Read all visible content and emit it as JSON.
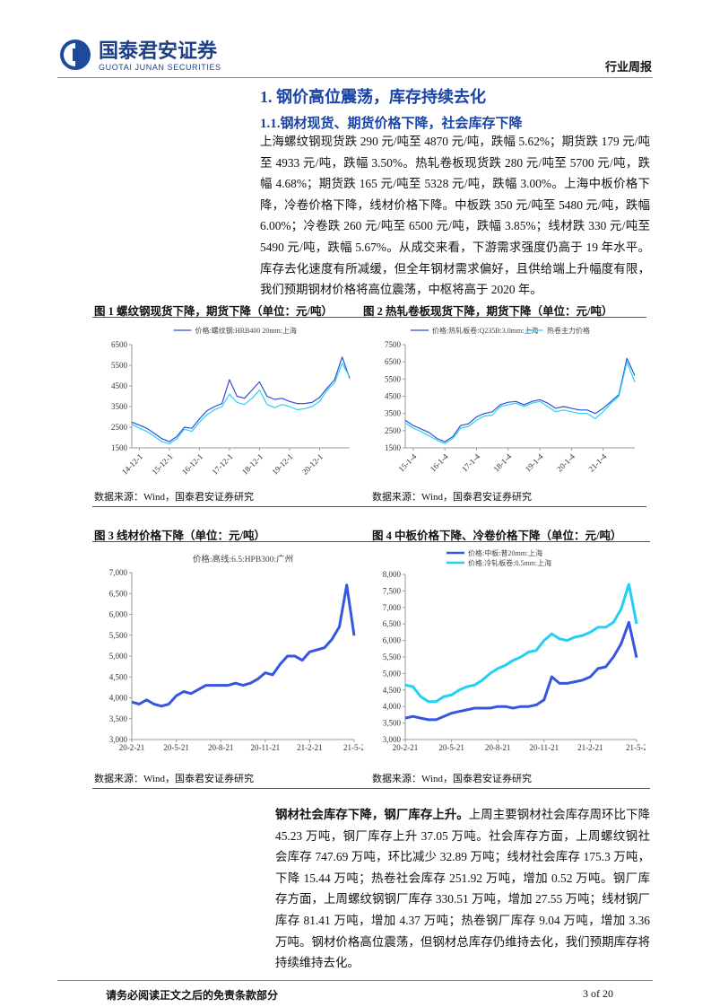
{
  "header": {
    "company": "国泰君安证券",
    "company_en": "GUOTAI JUNAN SECURITIES",
    "report_type": "行业周报"
  },
  "section": {
    "title": "1. 钢价高位震荡，库存持续去化",
    "subtitle": "1.1.钢材现货、期货价格下降，社会库存下降",
    "paragraph": "上海螺纹钢现货跌 290 元/吨至 4870 元/吨，跌幅 5.62%；期货跌 179 元/吨至 4933 元/吨，跌幅 3.50%。热轧卷板现货跌 280 元/吨至 5700 元/吨，跌幅 4.68%；期货跌 165 元/吨至 5328 元/吨，跌幅 3.00%。上海中板价格下降，冷卷价格下降，线材价格下降。中板跌 350 元/吨至 5480 元/吨，跌幅 6.00%；冷卷跌 260 元/吨至 6500 元/吨，跌幅 3.85%；线材跌 330 元/吨至 5490 元/吨，跌幅 5.67%。从成交来看，下游需求强度仍高于 19 年水平。库存去化速度有所减缓，但全年钢材需求偏好，且供给端上升幅度有限，我们预期钢材价格将高位震荡，中枢将高于 2020 年。"
  },
  "figures": [
    {
      "caption": "图 1 螺纹钢现货下降，期货下降（单位：元/吨）",
      "source": "数据来源：Wind，国泰君安证券研究",
      "chart_data": {
        "type": "line",
        "legend": "top",
        "categories": [
          null,
          "14-12-1",
          null,
          null,
          null,
          "15-12-1",
          null,
          null,
          null,
          "16-12-1",
          null,
          null,
          null,
          "17-12-1",
          null,
          null,
          null,
          "18-12-1",
          null,
          null,
          null,
          "19-12-1",
          null,
          null,
          null,
          "20-12-1",
          null,
          null,
          null,
          null
        ],
        "series": [
          {
            "name": "价格:螺纹钢:HRB400 20mm:上海",
            "color": "#2f4fd6",
            "values": [
              2750,
              2600,
              2450,
              2200,
              1950,
              1800,
              2050,
              2500,
              2450,
              2900,
              3300,
              3500,
              3650,
              4800,
              4000,
              3900,
              4300,
              4700,
              4000,
              3850,
              3900,
              3750,
              3650,
              3650,
              3700,
              3950,
              4400,
              4800,
              5900,
              4870
            ]
          },
          {
            "color": "#27d3f0",
            "values": [
              2650,
              2450,
              2300,
              2050,
              1800,
              1700,
              1950,
              2400,
              2300,
              2750,
              3100,
              3350,
              3500,
              4100,
              3700,
              3600,
              3900,
              4300,
              3600,
              3450,
              3600,
              3500,
              3350,
              3400,
              3500,
              3750,
              4300,
              4650,
              5600,
              4933
            ]
          }
        ],
        "ylim": [
          1500,
          6500
        ],
        "yticks": [
          1500,
          2500,
          3500,
          4500,
          5500,
          6500
        ]
      }
    },
    {
      "caption": "图 2 热轧卷板现货下降，期货下降（单位：元/吨）",
      "source": "数据来源：Wind，国泰君安证券研究",
      "chart_data": {
        "type": "line",
        "legend": "top",
        "categories": [
          null,
          "15-1-4",
          null,
          null,
          null,
          "16-1-4",
          null,
          null,
          null,
          "17-1-4",
          null,
          null,
          null,
          "18-1-4",
          null,
          null,
          null,
          "19-1-4",
          null,
          null,
          null,
          "20-1-4",
          null,
          null,
          null,
          "21-1-4",
          null,
          null,
          null,
          null
        ],
        "series": [
          {
            "name": "价格:热轧板卷:Q235B:3.0mm:上海",
            "color": "#2f4fd6",
            "values": [
              3100,
              2800,
              2600,
              2400,
              2050,
              1850,
              2150,
              2800,
              2900,
              3300,
              3500,
              3600,
              4000,
              4150,
              4200,
              4000,
              4200,
              4300,
              4100,
              3800,
              3900,
              3800,
              3700,
              3700,
              3500,
              3800,
              4200,
              4600,
              6700,
              5700
            ]
          },
          {
            "name": "热卷主力价格",
            "color": "#27d3f0",
            "values": [
              2950,
              2650,
              2450,
              2200,
              1950,
              1750,
              2050,
              2650,
              2750,
              3100,
              3350,
              3400,
              3900,
              4000,
              4100,
              3900,
              4100,
              4200,
              3900,
              3600,
              3700,
              3600,
              3500,
              3500,
              3200,
              3600,
              4100,
              4500,
              6500,
              5328
            ]
          }
        ],
        "ylim": [
          1500,
          7500
        ],
        "yticks": [
          1500,
          2500,
          3500,
          4500,
          5500,
          6500,
          7500
        ]
      }
    },
    {
      "caption": "图 3 线材价格下降（单位：元/吨）",
      "source": "数据来源：Wind，国泰君安证券研究",
      "chart_data": {
        "type": "line",
        "legend": "top",
        "title": "价格:高线:6.5:HPB300:广州",
        "categories": [
          "20-2-21",
          null,
          null,
          null,
          null,
          null,
          "20-5-21",
          null,
          null,
          null,
          null,
          null,
          "20-8-21",
          null,
          null,
          null,
          null,
          null,
          "20-11-21",
          null,
          null,
          null,
          null,
          null,
          "21-2-21",
          null,
          null,
          null,
          null,
          null,
          "21-5-2"
        ],
        "series": [
          {
            "color": "#3556e0",
            "values": [
              3900,
              3850,
              3950,
              3850,
              3800,
              3850,
              4050,
              4150,
              4100,
              4200,
              4300,
              4300,
              4300,
              4300,
              4350,
              4300,
              4350,
              4450,
              4600,
              4550,
              4800,
              5000,
              5000,
              4900,
              5100,
              5150,
              5200,
              5400,
              5700,
              6700,
              5490
            ]
          }
        ],
        "ylim": [
          3000,
          7000
        ],
        "yticks": [
          {
            "value": 3000,
            "label": "3,000"
          },
          {
            "value": 3500,
            "label": "3,500"
          },
          {
            "value": 4000,
            "label": "4,000"
          },
          {
            "value": 4500,
            "label": "4,500"
          },
          {
            "value": 5000,
            "label": "5,000"
          },
          {
            "value": 5500,
            "label": "5,500"
          },
          {
            "value": 6000,
            "label": "6,000"
          },
          {
            "value": 6500,
            "label": "6,500"
          },
          {
            "value": 7000,
            "label": "7,000"
          }
        ]
      }
    },
    {
      "caption": "图 4 中板价格下降、冷卷价格下降（单位：元/吨）",
      "source": "数据来源：Wind，国泰君安证券研究",
      "chart_data": {
        "type": "line",
        "legend": "upper left",
        "categories": [
          "20-2-21",
          null,
          null,
          null,
          null,
          null,
          "20-5-21",
          null,
          null,
          null,
          null,
          null,
          "20-8-21",
          null,
          null,
          null,
          null,
          null,
          "20-11-21",
          null,
          null,
          null,
          null,
          null,
          "21-2-21",
          null,
          null,
          null,
          null,
          null,
          "21-5-2"
        ],
        "series": [
          {
            "name": "价格:中板:普20mm:上海",
            "color": "#3556e0",
            "values": [
              3650,
              3700,
              3650,
              3600,
              3600,
              3700,
              3800,
              3850,
              3900,
              3950,
              3950,
              3950,
              4000,
              4000,
              3950,
              4000,
              4000,
              4050,
              4200,
              4900,
              4700,
              4700,
              4750,
              4800,
              4900,
              5150,
              5200,
              5500,
              5900,
              6550,
              5480
            ]
          },
          {
            "name": "价格:冷轧板卷:0.5mm:上海",
            "color": "#22d0f2",
            "values": [
              4650,
              4600,
              4300,
              4150,
              4150,
              4300,
              4350,
              4500,
              4600,
              4650,
              4800,
              5000,
              5150,
              5250,
              5400,
              5500,
              5650,
              5700,
              6000,
              6200,
              6050,
              6000,
              6100,
              6150,
              6250,
              6400,
              6400,
              6550,
              6950,
              7700,
              6500
            ]
          }
        ],
        "ylim": [
          3000,
          8000
        ],
        "yticks": [
          {
            "value": 3000,
            "label": "3,000"
          },
          {
            "value": 3500,
            "label": "3,500"
          },
          {
            "value": 4000,
            "label": "4,000"
          },
          {
            "value": 4500,
            "label": "4,500"
          },
          {
            "value": 5000,
            "label": "5,000"
          },
          {
            "value": 5500,
            "label": "5,500"
          },
          {
            "value": 6000,
            "label": "6,000"
          },
          {
            "value": 6500,
            "label": "6,500"
          },
          {
            "value": 7000,
            "label": "7,000"
          },
          {
            "value": 7500,
            "label": "7,500"
          },
          {
            "value": 8000,
            "label": "8,000"
          }
        ]
      }
    }
  ],
  "inventory": {
    "lead": "钢材社会库存下降，钢厂库存上升。",
    "text": "上周主要钢材社会库存周环比下降 45.23 万吨，钢厂库存上升 37.05 万吨。社会库存方面，上周螺纹钢社会库存 747.69 万吨，环比减少 32.89 万吨；线材社会库存 175.3 万吨，下降 15.44 万吨；热卷社会库存 251.92 万吨，增加 0.52 万吨。钢厂库存方面，上周螺纹钢钢厂库存 330.51 万吨，增加 27.55 万吨；线材钢厂库存 81.41 万吨，增加 4.37 万吨；热卷钢厂库存 9.04 万吨，增加 3.36 万吨。钢材价格高位震荡，但钢材总库存仍维持去化，我们预期库存将持续维持去化。"
  },
  "footer": {
    "disclaimer": "请务必阅读正文之后的免责条款部分",
    "page": "3 of 20"
  }
}
